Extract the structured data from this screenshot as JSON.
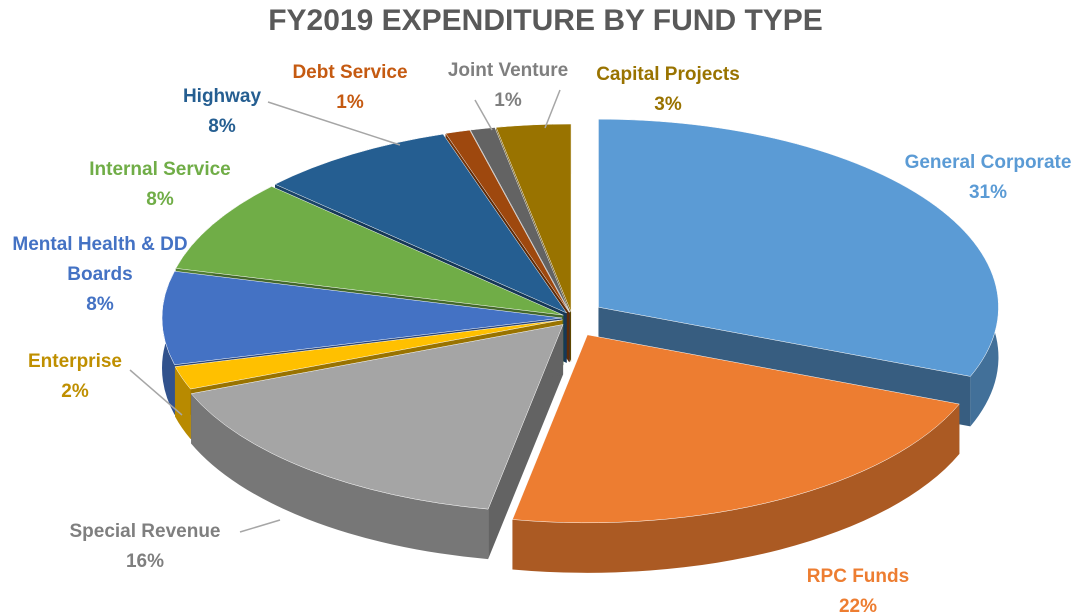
{
  "chart_data": {
    "type": "pie",
    "title": "FY2019 EXPENDITURE BY FUND TYPE",
    "categories": [
      "General Corporate",
      "RPC Funds",
      "Special Revenue",
      "Enterprise",
      "Mental Health & DD Boards",
      "Internal Service",
      "Highway",
      "Debt Service",
      "Joint Venture",
      "Capital Projects"
    ],
    "values": [
      31,
      22,
      16,
      2,
      8,
      8,
      8,
      1,
      1,
      3
    ],
    "value_labels": [
      "31%",
      "22%",
      "16%",
      "2%",
      "8%",
      "8%",
      "8%",
      "1%",
      "1%",
      "3%"
    ],
    "colors": [
      "#5b9bd5",
      "#ed7d31",
      "#a5a5a5",
      "#ffc000",
      "#4472c4",
      "#70ad47",
      "#255e91",
      "#9e480e",
      "#636363",
      "#997300"
    ]
  }
}
